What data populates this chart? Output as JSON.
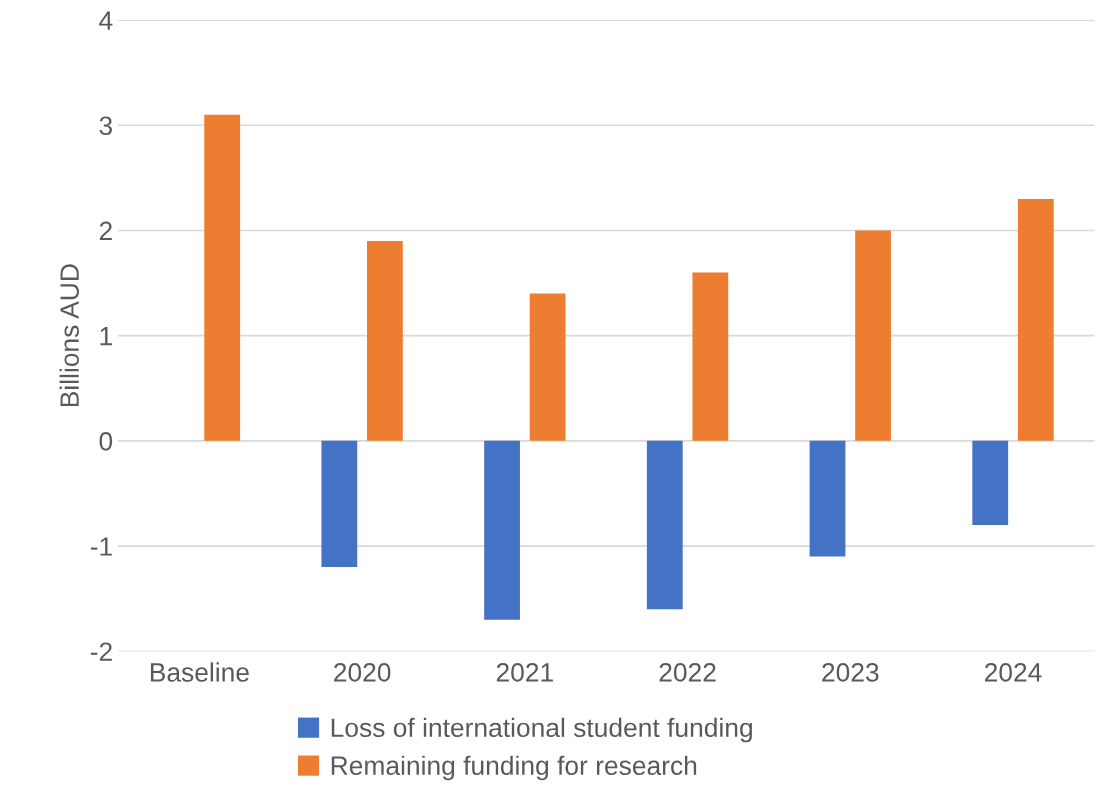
{
  "chart_data": {
    "type": "bar",
    "ylabel": "Billions AUD",
    "categories": [
      "Baseline",
      "2020",
      "2021",
      "2022",
      "2023",
      "2024"
    ],
    "series": [
      {
        "name": "Loss of international student funding",
        "color": "#4472c4",
        "values": [
          null,
          -1.2,
          -1.7,
          -1.6,
          -1.1,
          -0.8
        ]
      },
      {
        "name": "Remaining funding for research",
        "color": "#ed7d31",
        "values": [
          3.1,
          1.9,
          1.4,
          1.6,
          2.0,
          2.3
        ]
      }
    ],
    "ylim": [
      -2,
      4
    ],
    "yticks": [
      -2,
      -1,
      0,
      1,
      2,
      3,
      4
    ],
    "grid": "y",
    "legend": "bottom"
  }
}
